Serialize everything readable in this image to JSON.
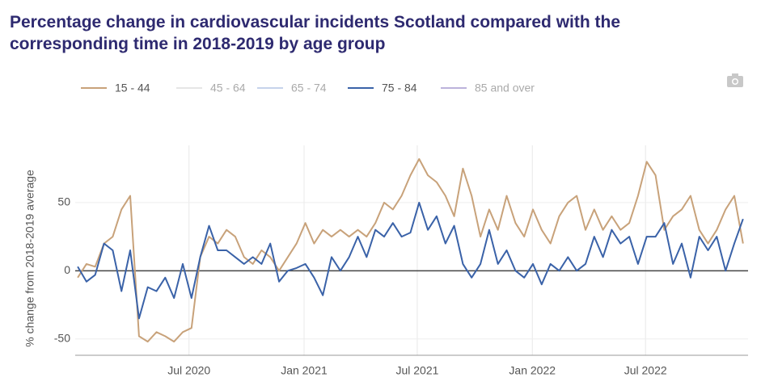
{
  "chart_data": {
    "type": "line",
    "title": "Percentage change in cardiovascular incidents Scotland compared with the corresponding time in 2018-2019 by age group",
    "y_label": "% change from 2018-2019 average",
    "x": [
      "2020-01-05",
      "2020-01-19",
      "2020-02-02",
      "2020-02-16",
      "2020-03-01",
      "2020-03-15",
      "2020-03-29",
      "2020-04-12",
      "2020-04-26",
      "2020-05-10",
      "2020-05-24",
      "2020-06-07",
      "2020-06-21",
      "2020-07-05",
      "2020-07-19",
      "2020-08-02",
      "2020-08-16",
      "2020-08-30",
      "2020-09-13",
      "2020-09-27",
      "2020-10-11",
      "2020-10-25",
      "2020-11-08",
      "2020-11-22",
      "2020-12-06",
      "2020-12-20",
      "2021-01-03",
      "2021-01-17",
      "2021-01-31",
      "2021-02-14",
      "2021-02-28",
      "2021-03-14",
      "2021-03-28",
      "2021-04-11",
      "2021-04-25",
      "2021-05-09",
      "2021-05-23",
      "2021-06-06",
      "2021-06-20",
      "2021-07-04",
      "2021-07-18",
      "2021-08-01",
      "2021-08-15",
      "2021-08-29",
      "2021-09-12",
      "2021-09-26",
      "2021-10-10",
      "2021-10-24",
      "2021-11-07",
      "2021-11-21",
      "2021-12-05",
      "2021-12-19",
      "2022-01-02",
      "2022-01-16",
      "2022-01-30",
      "2022-02-13",
      "2022-02-27",
      "2022-03-13",
      "2022-03-27",
      "2022-04-10",
      "2022-04-24",
      "2022-05-08",
      "2022-05-22",
      "2022-06-05",
      "2022-06-19",
      "2022-07-03",
      "2022-07-17",
      "2022-07-31",
      "2022-08-14",
      "2022-08-28",
      "2022-09-11",
      "2022-09-25",
      "2022-10-09",
      "2022-10-23",
      "2022-11-06",
      "2022-11-20",
      "2022-12-04"
    ],
    "series": [
      {
        "name": "15 - 44",
        "color": "#c8a27a",
        "visible": true,
        "values": [
          -5,
          5,
          3,
          20,
          25,
          45,
          55,
          -48,
          -52,
          -45,
          -48,
          -52,
          -45,
          -42,
          10,
          25,
          20,
          30,
          25,
          10,
          5,
          15,
          10,
          0,
          10,
          20,
          35,
          20,
          30,
          25,
          30,
          25,
          30,
          25,
          35,
          50,
          45,
          55,
          70,
          82,
          70,
          65,
          55,
          40,
          75,
          55,
          25,
          45,
          30,
          55,
          35,
          25,
          45,
          30,
          20,
          40,
          50,
          55,
          30,
          45,
          30,
          40,
          30,
          35,
          55,
          80,
          70,
          30,
          40,
          45,
          55,
          30,
          20,
          30,
          45,
          55,
          20
        ]
      },
      {
        "name": "45 - 64",
        "color": "#cfcfcf",
        "visible": false,
        "values": [
          null,
          null,
          null,
          null,
          null,
          null,
          null,
          null,
          null,
          null,
          null,
          null,
          null,
          null,
          null,
          null,
          null,
          null,
          null,
          null,
          null,
          null,
          null,
          null,
          null,
          null,
          null,
          null,
          null,
          null,
          null,
          null,
          null,
          null,
          null,
          null,
          null,
          null,
          null,
          null,
          null,
          null,
          null,
          null,
          null,
          null,
          null,
          null,
          null,
          null,
          null,
          null,
          null,
          null,
          null,
          null,
          null,
          null,
          null,
          null,
          null,
          null,
          null,
          null,
          null,
          null,
          null,
          null,
          null,
          null,
          null,
          null,
          null,
          null,
          null,
          null,
          null
        ]
      },
      {
        "name": "65 - 74",
        "color": "#8fa8d8",
        "visible": false,
        "values": [
          null,
          null,
          null,
          null,
          null,
          null,
          null,
          null,
          null,
          null,
          null,
          null,
          null,
          null,
          null,
          null,
          null,
          null,
          null,
          null,
          null,
          null,
          null,
          null,
          null,
          null,
          null,
          null,
          null,
          null,
          null,
          null,
          null,
          null,
          null,
          null,
          null,
          null,
          null,
          null,
          null,
          null,
          null,
          null,
          null,
          null,
          null,
          null,
          null,
          null,
          null,
          null,
          null,
          null,
          null,
          null,
          null,
          null,
          null,
          null,
          null,
          null,
          null,
          null,
          null,
          null,
          null,
          null,
          null,
          null,
          null,
          null,
          null,
          null,
          null,
          null,
          null
        ]
      },
      {
        "name": "75 - 84",
        "color": "#3a62a8",
        "visible": true,
        "values": [
          3,
          -8,
          -3,
          20,
          15,
          -15,
          15,
          -35,
          -12,
          -15,
          -5,
          -20,
          5,
          -20,
          10,
          33,
          15,
          15,
          10,
          5,
          10,
          5,
          20,
          -8,
          0,
          2,
          5,
          -5,
          -18,
          10,
          0,
          10,
          25,
          10,
          30,
          25,
          35,
          25,
          28,
          50,
          30,
          40,
          20,
          33,
          5,
          -5,
          5,
          30,
          5,
          15,
          0,
          -5,
          5,
          -10,
          5,
          0,
          10,
          0,
          5,
          25,
          10,
          30,
          20,
          25,
          5,
          25,
          25,
          35,
          5,
          20,
          -5,
          25,
          15,
          25,
          0,
          20,
          38
        ]
      },
      {
        "name": "85 and over",
        "color": "#7b68b8",
        "visible": false,
        "values": [
          null,
          null,
          null,
          null,
          null,
          null,
          null,
          null,
          null,
          null,
          null,
          null,
          null,
          null,
          null,
          null,
          null,
          null,
          null,
          null,
          null,
          null,
          null,
          null,
          null,
          null,
          null,
          null,
          null,
          null,
          null,
          null,
          null,
          null,
          null,
          null,
          null,
          null,
          null,
          null,
          null,
          null,
          null,
          null,
          null,
          null,
          null,
          null,
          null,
          null,
          null,
          null,
          null,
          null,
          null,
          null,
          null,
          null,
          null,
          null,
          null,
          null,
          null,
          null,
          null,
          null,
          null,
          null,
          null,
          null,
          null,
          null,
          null,
          null,
          null,
          null,
          null
        ]
      }
    ],
    "xlim": [
      "2020-01-01",
      "2022-12-12"
    ],
    "xticks": [
      {
        "value": "2020-07-01",
        "label": "Jul 2020"
      },
      {
        "value": "2021-01-01",
        "label": "Jan 2021"
      },
      {
        "value": "2021-07-01",
        "label": "Jul 2021"
      },
      {
        "value": "2022-01-01",
        "label": "Jan 2022"
      },
      {
        "value": "2022-07-01",
        "label": "Jul 2022"
      }
    ],
    "ylim": [
      -62,
      92
    ],
    "yticks": [
      -50,
      0,
      50
    ],
    "grid": true,
    "legend": "top"
  }
}
